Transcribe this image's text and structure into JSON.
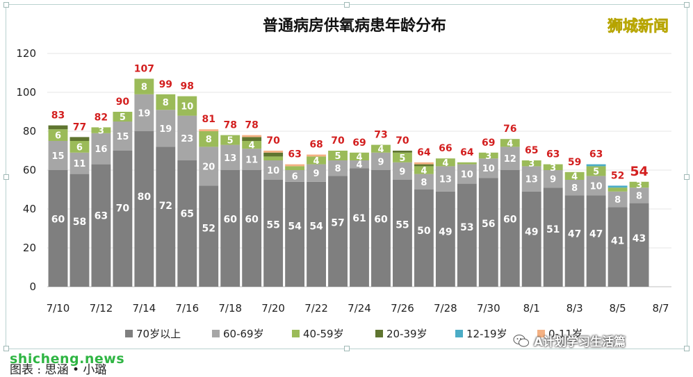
{
  "brand": "狮城新闻",
  "watermark": "shicheng.news",
  "credit": "图表 : 思涵 • 小璐",
  "wechat_account": "A计划学习生活篇",
  "chart_data": {
    "type": "bar",
    "stacked": true,
    "title": "普通病房供氧病患年龄分布",
    "ylim": [
      0,
      120
    ],
    "yticks": [
      0,
      20,
      40,
      60,
      80,
      100,
      120
    ],
    "grid": true,
    "legend_position": "bottom",
    "categories": [
      "7/10",
      "7/11",
      "7/12",
      "7/13",
      "7/14",
      "7/15",
      "7/16",
      "7/17",
      "7/18",
      "7/19",
      "7/20",
      "7/21",
      "7/22",
      "7/23",
      "7/24",
      "7/25",
      "7/26",
      "7/27",
      "7/28",
      "7/29",
      "7/30",
      "7/31",
      "8/1",
      "8/2",
      "8/3",
      "8/4",
      "8/5",
      "8/6"
    ],
    "x_tick_labels": [
      "7/10",
      "7/12",
      "7/14",
      "7/16",
      "7/18",
      "7/20",
      "7/22",
      "7/24",
      "7/26",
      "7/28",
      "7/30",
      "8/1",
      "8/3",
      "8/5",
      "8/7"
    ],
    "totals": [
      83,
      77,
      82,
      90,
      107,
      99,
      98,
      81,
      78,
      78,
      70,
      63,
      68,
      70,
      69,
      73,
      70,
      64,
      66,
      64,
      69,
      76,
      65,
      63,
      59,
      63,
      52,
      54
    ],
    "series": [
      {
        "name": "70岁以上",
        "color": "#7f7f7f",
        "values": [
          60,
          58,
          63,
          70,
          80,
          72,
          65,
          52,
          60,
          60,
          55,
          54,
          54,
          57,
          61,
          60,
          55,
          50,
          49,
          53,
          56,
          60,
          49,
          51,
          47,
          47,
          41,
          43
        ]
      },
      {
        "name": "60-69岁",
        "color": "#a6a6a6",
        "values": [
          15,
          11,
          16,
          15,
          19,
          19,
          23,
          20,
          13,
          11,
          10,
          6,
          9,
          8,
          4,
          9,
          9,
          8,
          13,
          10,
          10,
          12,
          13,
          9,
          8,
          10,
          8,
          8
        ]
      },
      {
        "name": "40-59岁",
        "color": "#9bbb59",
        "values": [
          6,
          6,
          3,
          5,
          8,
          8,
          10,
          8,
          5,
          4,
          2,
          2,
          4,
          5,
          4,
          4,
          5,
          4,
          4,
          1,
          3,
          4,
          3,
          3,
          4,
          5,
          2,
          3
        ]
      },
      {
        "name": "20-39岁",
        "color": "#5f7530",
        "values": [
          2,
          2,
          0,
          0,
          0,
          0,
          0,
          0,
          0,
          2,
          2,
          0,
          0,
          0,
          0,
          0,
          1,
          1,
          0,
          0,
          0,
          0,
          0,
          0,
          0,
          0,
          0,
          0
        ]
      },
      {
        "name": "12-19岁",
        "color": "#4bacc6",
        "values": [
          0,
          0,
          0,
          0,
          0,
          0,
          0,
          0,
          0,
          0,
          0,
          0,
          0,
          0,
          0,
          0,
          0,
          0,
          0,
          0,
          0,
          0,
          0,
          0,
          0,
          1,
          1,
          0
        ]
      },
      {
        "name": "0-11岁",
        "color": "#f4b183",
        "values": [
          0,
          0,
          0,
          0,
          0,
          0,
          0,
          1,
          0,
          1,
          1,
          1,
          1,
          0,
          0,
          0,
          0,
          1,
          0,
          0,
          0,
          0,
          0,
          0,
          0,
          0,
          0,
          0
        ]
      }
    ]
  }
}
